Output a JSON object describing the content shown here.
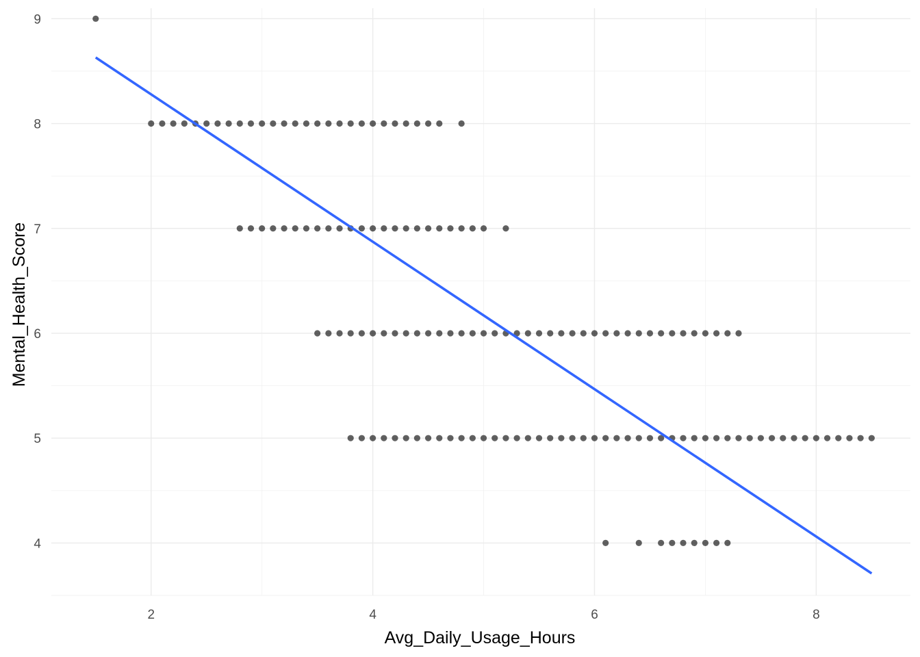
{
  "chart_data": {
    "type": "scatter",
    "title": "",
    "xlabel": "Avg_Daily_Usage_Hours",
    "ylabel": "Mental_Health_Score",
    "xlim": [
      1.1,
      8.85
    ],
    "ylim": [
      3.5,
      9.1
    ],
    "x_ticks": [
      2,
      4,
      6,
      8
    ],
    "y_ticks": [
      4,
      5,
      6,
      7,
      8,
      9
    ],
    "grid": true,
    "legend": "none",
    "point_color": "#000000",
    "line_color": "#3366ff",
    "points_by_score": [
      {
        "y": 9,
        "x": [
          1.5
        ]
      },
      {
        "y": 8,
        "x": [
          2.0,
          2.1,
          2.2,
          2.3,
          2.4,
          2.5,
          2.6,
          2.7,
          2.8,
          2.9,
          3.0,
          3.1,
          3.2,
          3.3,
          3.4,
          3.5,
          3.6,
          3.7,
          3.8,
          3.9,
          4.0,
          4.1,
          4.2,
          4.3,
          4.4,
          4.5,
          4.6,
          4.8
        ]
      },
      {
        "y": 7,
        "x": [
          2.8,
          2.9,
          3.0,
          3.1,
          3.2,
          3.3,
          3.4,
          3.5,
          3.6,
          3.7,
          3.8,
          3.9,
          4.0,
          4.1,
          4.2,
          4.3,
          4.4,
          4.5,
          4.6,
          4.7,
          4.8,
          4.9,
          5.0,
          5.2
        ]
      },
      {
        "y": 6,
        "x": [
          3.5,
          3.6,
          3.7,
          3.8,
          3.9,
          4.0,
          4.1,
          4.2,
          4.3,
          4.4,
          4.5,
          4.6,
          4.7,
          4.8,
          4.9,
          5.0,
          5.1,
          5.2,
          5.3,
          5.4,
          5.5,
          5.6,
          5.7,
          5.8,
          5.9,
          6.0,
          6.1,
          6.2,
          6.3,
          6.4,
          6.5,
          6.6,
          6.7,
          6.8,
          6.9,
          7.0,
          7.1,
          7.2,
          7.3
        ]
      },
      {
        "y": 5,
        "x": [
          3.8,
          3.9,
          4.0,
          4.1,
          4.2,
          4.3,
          4.4,
          4.5,
          4.6,
          4.7,
          4.8,
          4.9,
          5.0,
          5.1,
          5.2,
          5.3,
          5.4,
          5.5,
          5.6,
          5.7,
          5.8,
          5.9,
          6.0,
          6.1,
          6.2,
          6.3,
          6.4,
          6.5,
          6.6,
          6.7,
          6.8,
          6.9,
          7.0,
          7.1,
          7.2,
          7.3,
          7.4,
          7.5,
          7.6,
          7.7,
          7.8,
          7.9,
          8.0,
          8.1,
          8.2,
          8.3,
          8.4,
          8.5
        ]
      },
      {
        "y": 4,
        "x": [
          6.1,
          6.4,
          6.6,
          6.7,
          6.8,
          6.9,
          7.0,
          7.1,
          7.2
        ]
      }
    ],
    "fit_line": {
      "x": [
        1.5,
        8.5
      ],
      "y": [
        8.63,
        3.71
      ]
    }
  }
}
